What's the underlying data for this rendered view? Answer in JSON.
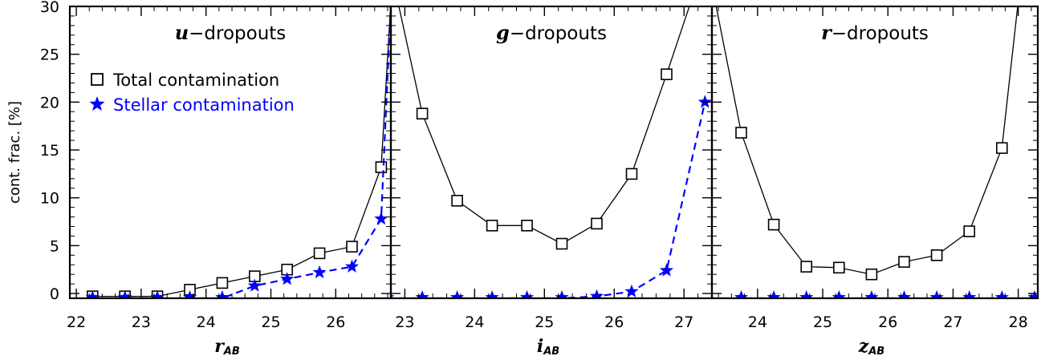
{
  "chart_data": {
    "type": "line",
    "ylabel": "cont. frac. [%]",
    "ylim": [
      -0.5,
      30
    ],
    "yticks": [
      0,
      5,
      10,
      15,
      20,
      25,
      30
    ],
    "legend": {
      "placement": "top-left of first panel",
      "entries": [
        {
          "label": "Total contamination",
          "marker": "open-square",
          "color": "#000000"
        },
        {
          "label": "Stellar contamination",
          "marker": "star",
          "color": "#0000ff"
        }
      ]
    },
    "panels": [
      {
        "title_var": "u",
        "title_rest": "−dropouts",
        "xlabel_var": "r",
        "xlabel_sub": "AB",
        "xlim": [
          21.9,
          26.85
        ],
        "xticks": [
          "22",
          "23",
          "24",
          "25",
          "26"
        ],
        "xtick_values": [
          22,
          23,
          24,
          25,
          26
        ],
        "series": [
          {
            "name": "Total contamination",
            "color": "#000000",
            "marker": "square",
            "dashed": false,
            "x": [
              22.25,
              22.75,
              23.25,
              23.75,
              24.25,
              24.75,
              25.25,
              25.75,
              26.25,
              26.7,
              26.85
            ],
            "y": [
              -0.3,
              -0.3,
              -0.3,
              0.4,
              1.1,
              1.8,
              2.5,
              4.2,
              4.9,
              13.2,
              30.5
            ],
            "marker_count": 10
          },
          {
            "name": "Stellar contamination",
            "color": "#0000ff",
            "marker": "star",
            "dashed": true,
            "x": [
              22.25,
              22.75,
              23.25,
              23.75,
              24.25,
              24.75,
              25.25,
              25.75,
              26.25,
              26.7,
              26.85
            ],
            "y": [
              -0.5,
              -0.5,
              -0.5,
              -0.5,
              -0.5,
              0.8,
              1.5,
              2.2,
              2.8,
              7.8,
              30.5
            ],
            "marker_count": 10
          }
        ]
      },
      {
        "title_var": "g",
        "title_rest": "−dropouts",
        "xlabel_var": "i",
        "xlabel_sub": "AB",
        "xlim": [
          22.8,
          27.4
        ],
        "xticks": [
          "23",
          "24",
          "25",
          "26",
          "27"
        ],
        "xtick_values": [
          23,
          24,
          25,
          26,
          27
        ],
        "series": [
          {
            "name": "Total contamination",
            "color": "#000000",
            "marker": "square",
            "dashed": false,
            "x": [
              22.9,
              23.25,
              23.75,
              24.25,
              24.75,
              25.25,
              25.75,
              26.25,
              26.75,
              27.1
            ],
            "y": [
              30.5,
              18.8,
              9.7,
              7.1,
              7.1,
              5.2,
              7.3,
              12.5,
              22.9,
              30.5
            ],
            "marker_x": [
              23.25,
              23.75,
              24.25,
              24.75,
              25.25,
              25.75,
              26.25,
              26.75
            ]
          },
          {
            "name": "Stellar contamination",
            "color": "#0000ff",
            "marker": "star",
            "dashed": true,
            "x": [
              22.75,
              23.25,
              23.75,
              24.25,
              24.75,
              25.25,
              25.75,
              26.25,
              26.75,
              27.3
            ],
            "y": [
              -0.5,
              -0.5,
              -0.5,
              -0.5,
              -0.5,
              -0.5,
              -0.3,
              0.2,
              2.4,
              20.0
            ],
            "marker_x": [
              22.75,
              23.25,
              23.75,
              24.25,
              24.75,
              25.25,
              25.75,
              26.25,
              26.75,
              27.3
            ]
          }
        ]
      },
      {
        "title_var": "r",
        "title_rest": "−dropouts",
        "xlabel_var": "z",
        "xlabel_sub": "AB",
        "xlim": [
          23.3,
          28.3
        ],
        "xticks": [
          "24",
          "25",
          "26",
          "27",
          "28"
        ],
        "xtick_values": [
          24,
          25,
          26,
          27,
          28
        ],
        "series": [
          {
            "name": "Total contamination",
            "color": "#000000",
            "marker": "square",
            "dashed": false,
            "x": [
              23.35,
              23.75,
              24.25,
              24.75,
              25.25,
              25.75,
              26.25,
              26.75,
              27.25,
              27.75,
              28.0
            ],
            "y": [
              30.5,
              16.8,
              7.2,
              2.8,
              2.7,
              2.0,
              3.3,
              4.0,
              6.5,
              15.2,
              30.5
            ],
            "marker_x": [
              23.75,
              24.25,
              24.75,
              25.25,
              25.75,
              26.25,
              26.75,
              27.25,
              27.75
            ]
          },
          {
            "name": "Stellar contamination",
            "color": "#0000ff",
            "marker": "star",
            "dashed": true,
            "x": [
              23.25,
              23.75,
              24.25,
              24.75,
              25.25,
              25.75,
              26.25,
              26.75,
              27.25,
              27.75,
              28.25
            ],
            "y": [
              -0.5,
              -0.5,
              -0.5,
              -0.5,
              -0.5,
              -0.5,
              -0.5,
              -0.5,
              -0.5,
              -0.5,
              -0.5
            ],
            "marker_x": [
              23.75,
              24.25,
              24.75,
              25.25,
              25.75,
              26.25,
              26.75,
              27.25,
              27.75,
              28.25
            ]
          }
        ]
      }
    ]
  }
}
